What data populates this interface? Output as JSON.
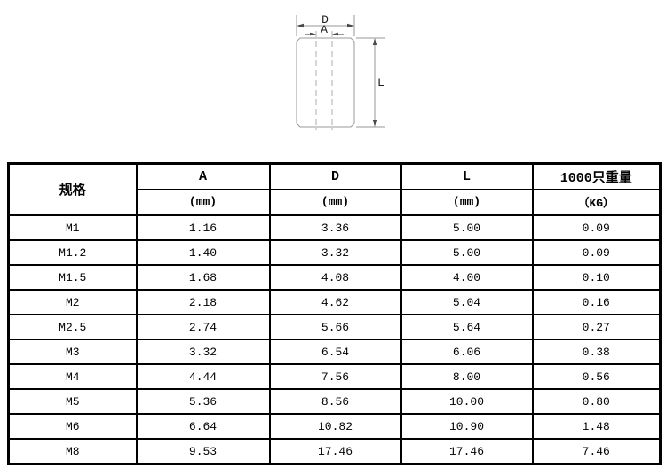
{
  "drawing": {
    "labels": {
      "outer_diameter": "D",
      "inner_diameter": "A",
      "length": "L"
    },
    "line_color": "#9a9a9a",
    "dashed_line_color": "#aeaeae",
    "label_color": "#1c1c1c"
  },
  "table": {
    "spec_header": "规格",
    "columns": [
      {
        "name": "A",
        "unit": "(mm)"
      },
      {
        "name": "D",
        "unit": "(mm)"
      },
      {
        "name": "L",
        "unit": "(mm)"
      },
      {
        "name": "1000只重量",
        "unit": "（KG）"
      }
    ],
    "rows": [
      {
        "spec": "M1",
        "a": "1.16",
        "d": "3.36",
        "l": "5.00",
        "weight": "0.09"
      },
      {
        "spec": "M1.2",
        "a": "1.40",
        "d": "3.32",
        "l": "5.00",
        "weight": "0.09"
      },
      {
        "spec": "M1.5",
        "a": "1.68",
        "d": "4.08",
        "l": "4.00",
        "weight": "0.10"
      },
      {
        "spec": "M2",
        "a": "2.18",
        "d": "4.62",
        "l": "5.04",
        "weight": "0.16"
      },
      {
        "spec": "M2.5",
        "a": "2.74",
        "d": "5.66",
        "l": "5.64",
        "weight": "0.27"
      },
      {
        "spec": "M3",
        "a": "3.32",
        "d": "6.54",
        "l": "6.06",
        "weight": "0.38"
      },
      {
        "spec": "M4",
        "a": "4.44",
        "d": "7.56",
        "l": "8.00",
        "weight": "0.56"
      },
      {
        "spec": "M5",
        "a": "5.36",
        "d": "8.56",
        "l": "10.00",
        "weight": "0.80"
      },
      {
        "spec": "M6",
        "a": "6.64",
        "d": "10.82",
        "l": "10.90",
        "weight": "1.48"
      },
      {
        "spec": "M8",
        "a": "9.53",
        "d": "17.46",
        "l": "17.46",
        "weight": "7.46"
      }
    ]
  }
}
